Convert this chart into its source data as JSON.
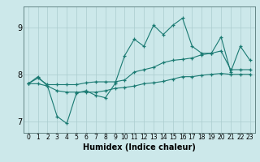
{
  "title": "",
  "xlabel": "Humidex (Indice chaleur)",
  "bg_color": "#cce8ea",
  "grid_color": "#aaccce",
  "line_color": "#1a7a72",
  "xlim": [
    -0.5,
    23.5
  ],
  "ylim": [
    6.75,
    9.45
  ],
  "xticks": [
    0,
    1,
    2,
    3,
    4,
    5,
    6,
    7,
    8,
    9,
    10,
    11,
    12,
    13,
    14,
    15,
    16,
    17,
    18,
    19,
    20,
    21,
    22,
    23
  ],
  "yticks": [
    7,
    8,
    9
  ],
  "series": {
    "top": [
      7.8,
      7.95,
      7.75,
      7.1,
      6.95,
      7.6,
      7.65,
      7.55,
      7.5,
      7.8,
      8.4,
      8.75,
      8.6,
      9.05,
      8.85,
      9.05,
      9.2,
      8.6,
      8.45,
      8.45,
      8.8,
      8.05,
      8.6,
      8.3
    ],
    "mid": [
      7.8,
      7.92,
      7.78,
      7.78,
      7.78,
      7.78,
      7.82,
      7.84,
      7.84,
      7.84,
      7.88,
      8.05,
      8.1,
      8.15,
      8.25,
      8.3,
      8.32,
      8.35,
      8.42,
      8.45,
      8.5,
      8.1,
      8.1,
      8.1
    ],
    "bot": [
      7.8,
      7.8,
      7.75,
      7.65,
      7.62,
      7.62,
      7.62,
      7.62,
      7.65,
      7.7,
      7.72,
      7.75,
      7.8,
      7.82,
      7.85,
      7.9,
      7.95,
      7.95,
      7.98,
      8.0,
      8.02,
      8.0,
      8.0,
      8.0
    ]
  },
  "xlabel_fontsize": 7,
  "tick_fontsize_x": 5.5,
  "tick_fontsize_y": 7
}
